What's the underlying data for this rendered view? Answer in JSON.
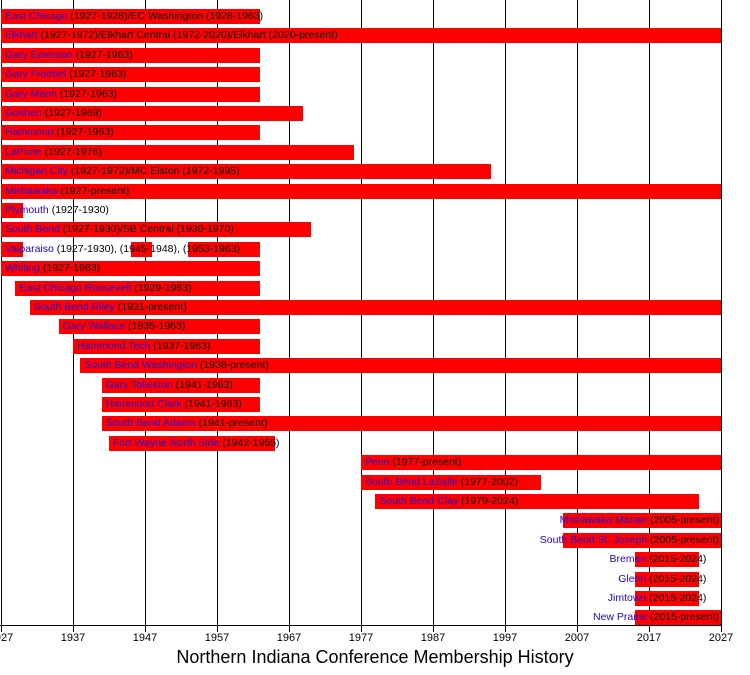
{
  "title": "Northern Indiana Conference Membership History",
  "colors": {
    "bar": "#ff0000",
    "school_link": "#2200cc",
    "year_text": "#000000",
    "grid": "#000000",
    "background": "#ffffff"
  },
  "chart_data": {
    "type": "timeline",
    "title": "Northern Indiana Conference Membership History",
    "x_axis": {
      "min": 1927,
      "max": 2027,
      "tick_interval": 10,
      "ticks": [
        1927,
        1937,
        1947,
        1957,
        1967,
        1977,
        1987,
        1997,
        2007,
        2017,
        2027
      ],
      "present_maps_to": 2027,
      "grid": true
    },
    "rows": [
      {
        "school": "East Chicago",
        "details": " (1927-1928)/EC Washington (1928-1963)",
        "segments": [
          [
            1927,
            1963
          ]
        ],
        "label_align": "left"
      },
      {
        "school": "Elkhart",
        "details": " (1927-1972)/Elkhart Central (1972-2020)/Elkhart (2020-present)",
        "segments": [
          [
            1927,
            2027
          ]
        ],
        "label_align": "left"
      },
      {
        "school": "Gary Emerson",
        "details": " (1927-1963)",
        "segments": [
          [
            1927,
            1963
          ]
        ],
        "label_align": "left"
      },
      {
        "school": "Gary Froebel",
        "details": " (1927-1963)",
        "segments": [
          [
            1927,
            1963
          ]
        ],
        "label_align": "left"
      },
      {
        "school": "Gary Mann",
        "details": " (1927-1963)",
        "segments": [
          [
            1927,
            1963
          ]
        ],
        "label_align": "left"
      },
      {
        "school": "Goshen",
        "details": " (1927-1969)",
        "segments": [
          [
            1927,
            1969
          ]
        ],
        "label_align": "left"
      },
      {
        "school": "Hammond",
        "details": " (1927-1963)",
        "segments": [
          [
            1927,
            1963
          ]
        ],
        "label_align": "left"
      },
      {
        "school": "LaPorte",
        "details": " (1927-1976)",
        "segments": [
          [
            1927,
            1976
          ]
        ],
        "label_align": "left"
      },
      {
        "school": "Michigan City",
        "details": " (1927-1972)/MC Elston (1972-1995)",
        "segments": [
          [
            1927,
            1995
          ]
        ],
        "label_align": "left"
      },
      {
        "school": "Mishawaka",
        "details": " (1927-present)",
        "segments": [
          [
            1927,
            2027
          ]
        ],
        "label_align": "left"
      },
      {
        "school": "Plymouth",
        "details": " (1927-1930)",
        "segments": [
          [
            1927,
            1930
          ]
        ],
        "label_align": "left"
      },
      {
        "school": "South Bend",
        "details": " (1927-1930)/SB Central (1930-1970)",
        "segments": [
          [
            1927,
            1970
          ]
        ],
        "label_align": "left"
      },
      {
        "school": "Valparaiso",
        "details": " (1927-1930), (1945-1948), (1953-1963)",
        "segments": [
          [
            1927,
            1930
          ],
          [
            1945,
            1948
          ],
          [
            1953,
            1963
          ]
        ],
        "label_align": "left"
      },
      {
        "school": "Whiting",
        "details": " (1927-1963)",
        "segments": [
          [
            1927,
            1963
          ]
        ],
        "label_align": "left"
      },
      {
        "school": "East Chicago Roosevelt",
        "details": " (1929-1963)",
        "segments": [
          [
            1929,
            1963
          ]
        ],
        "label_align": "left"
      },
      {
        "school": "South Bend Riley",
        "details": " (1931-present)",
        "segments": [
          [
            1931,
            2027
          ]
        ],
        "label_align": "left"
      },
      {
        "school": "Gary Wallace",
        "details": " (1935-1963)",
        "segments": [
          [
            1935,
            1963
          ]
        ],
        "label_align": "left"
      },
      {
        "school": "Hammond Tech",
        "details": " (1937-1963)",
        "segments": [
          [
            1937,
            1963
          ]
        ],
        "label_align": "left"
      },
      {
        "school": "South Bend Washington",
        "details": " (1938-present)",
        "segments": [
          [
            1938,
            2027
          ]
        ],
        "label_align": "left"
      },
      {
        "school": "Gary Tolleston",
        "details": " (1941-1963)",
        "segments": [
          [
            1941,
            1963
          ]
        ],
        "label_align": "left"
      },
      {
        "school": "Hammond Clark",
        "details": " (1941-1963)",
        "segments": [
          [
            1941,
            1963
          ]
        ],
        "label_align": "left"
      },
      {
        "school": "South Bend Adams",
        "details": " (1941-present)",
        "segments": [
          [
            1941,
            2027
          ]
        ],
        "label_align": "left"
      },
      {
        "school": "Fort Wayne North Side",
        "details": " (1942-1965)",
        "segments": [
          [
            1942,
            1965
          ]
        ],
        "label_align": "left"
      },
      {
        "school": "Penn",
        "details": " (1977-present)",
        "segments": [
          [
            1977,
            2027
          ]
        ],
        "label_align": "left"
      },
      {
        "school": "South Bend LaSalle",
        "details": " (1977-2002)",
        "segments": [
          [
            1977,
            2002
          ]
        ],
        "label_align": "left"
      },
      {
        "school": "South Bend Clay",
        "details": " (1979-2024)",
        "segments": [
          [
            1979,
            2024
          ]
        ],
        "label_align": "left"
      },
      {
        "school": "Mishawaka Marian",
        "details": " (2005-present)",
        "segments": [
          [
            2005,
            2027
          ]
        ],
        "label_align": "right"
      },
      {
        "school": "South Bend St. Joseph",
        "details": " (2005-present)",
        "segments": [
          [
            2005,
            2027
          ]
        ],
        "label_align": "right"
      },
      {
        "school": "Bremen",
        "details": " (2015-2024)",
        "segments": [
          [
            2015,
            2024
          ]
        ],
        "label_align": "right"
      },
      {
        "school": "Glenn",
        "details": " (2015-2024)",
        "segments": [
          [
            2015,
            2024
          ]
        ],
        "label_align": "right"
      },
      {
        "school": "Jimtown",
        "details": " (2015-2024)",
        "segments": [
          [
            2015,
            2024
          ]
        ],
        "label_align": "right"
      },
      {
        "school": "New Prairie",
        "details": " (2015-present)",
        "segments": [
          [
            2015,
            2027
          ]
        ],
        "label_align": "right"
      }
    ]
  }
}
